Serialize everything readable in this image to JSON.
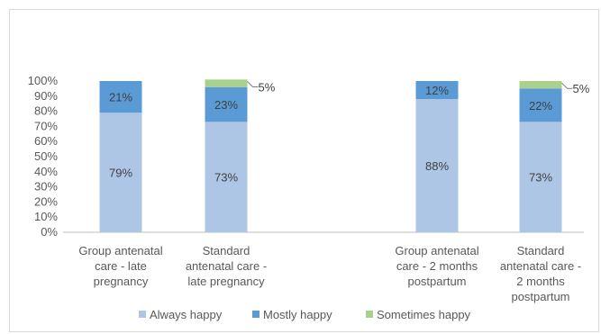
{
  "chart_data": {
    "type": "bar",
    "stacked": true,
    "title": "",
    "xlabel": "",
    "ylabel": "",
    "ylim": [
      0,
      100
    ],
    "y_tick_format": "percent",
    "y_ticks": [
      "0%",
      "10%",
      "20%",
      "30%",
      "40%",
      "50%",
      "60%",
      "70%",
      "80%",
      "90%",
      "100%"
    ],
    "grid": false,
    "legend_position": "bottom",
    "categories": [
      [
        "Group antenatal",
        "care - late",
        "pregnancy"
      ],
      [
        "Standard",
        "antenatal care -",
        "late pregnancy"
      ],
      [
        "Group antenatal",
        "care - 2 months",
        "postpartum"
      ],
      [
        "Standard",
        "antenatal care -",
        "2 months",
        "postpartum"
      ]
    ],
    "series": [
      {
        "name": "Always happy",
        "color": "#aec6e6",
        "values": [
          79,
          73,
          88,
          73
        ],
        "labels": [
          "79%",
          "73%",
          "88%",
          "73%"
        ]
      },
      {
        "name": "Mostly happy",
        "color": "#5b9bd5",
        "values": [
          21,
          23,
          12,
          22
        ],
        "labels": [
          "21%",
          "23%",
          "12%",
          "22%"
        ]
      },
      {
        "name": "Sometimes happy",
        "color": "#a9d18e",
        "values": [
          0,
          5,
          0,
          5
        ],
        "labels": [
          "",
          "5%",
          "",
          "5%"
        ]
      }
    ]
  }
}
